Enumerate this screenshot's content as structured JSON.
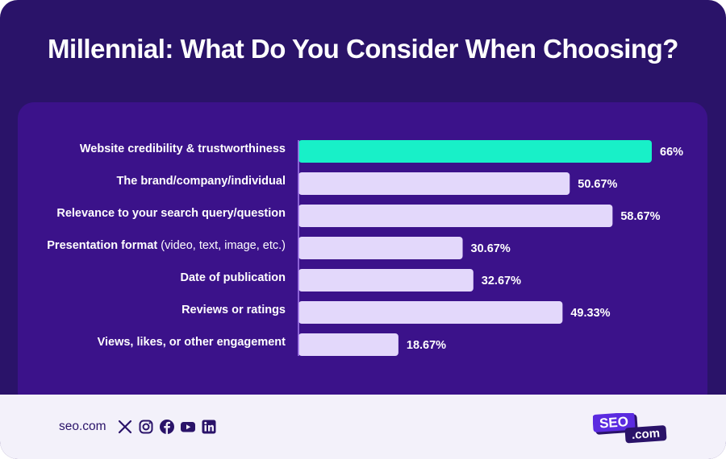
{
  "chart_data": {
    "type": "bar",
    "orientation": "horizontal",
    "title": "Millennial: What Do You Consider When Choosing?",
    "categories": [
      {
        "bold": "Website credibility & trustworthiness",
        "rest": ""
      },
      {
        "bold": "The brand/company/individual",
        "rest": ""
      },
      {
        "bold": "Relevance to your search query/question",
        "rest": ""
      },
      {
        "bold": "Presentation format",
        "rest": " (video, text, image, etc.)"
      },
      {
        "bold": "Date of publication",
        "rest": ""
      },
      {
        "bold": "Reviews or ratings",
        "rest": ""
      },
      {
        "bold": "Views, likes, or other engagement",
        "rest": ""
      }
    ],
    "values": [
      66,
      50.67,
      58.67,
      30.67,
      32.67,
      49.33,
      18.67
    ],
    "value_labels": [
      "66%",
      "50.67%",
      "58.67%",
      "30.67%",
      "32.67%",
      "49.33%",
      "18.67%"
    ],
    "unit": "%",
    "xlim": [
      0,
      66
    ],
    "highlight_index": 0,
    "colors": {
      "highlight": "#18f0c8",
      "bar": "#e3d8fb",
      "axis": "#a77cf0"
    }
  },
  "footer": {
    "domain": "seo.com",
    "social_icons": [
      "x-icon",
      "instagram-icon",
      "facebook-icon",
      "youtube-icon",
      "linkedin-icon"
    ],
    "logo": {
      "top": "SEO",
      "bottom": ".com"
    }
  },
  "colors": {
    "background": "#2a1369",
    "panel": "#3b128a",
    "footer": "#f3f1fa",
    "logo": "#5b2be0"
  }
}
